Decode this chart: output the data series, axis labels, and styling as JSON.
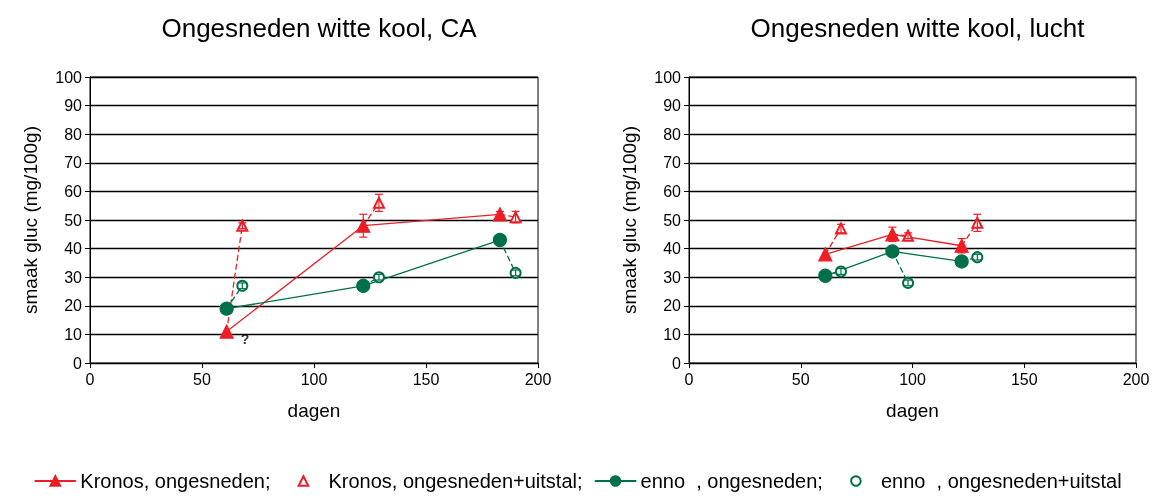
{
  "chart_data": [
    {
      "type": "line",
      "title": "Ongesneden witte kool, CA",
      "xlabel": "dagen",
      "ylabel": "smaak gluc (mg/100g)",
      "xlim": [
        0,
        200
      ],
      "xticks": [
        0,
        50,
        100,
        150,
        200
      ],
      "ylim": [
        0,
        100
      ],
      "yticks": [
        0,
        10,
        20,
        30,
        40,
        50,
        60,
        70,
        80,
        90,
        100
      ],
      "grid": "y",
      "legend": "bottom",
      "annotations": [
        {
          "text": "?",
          "x": 61,
          "y": 11
        }
      ],
      "series": [
        {
          "name": "Kronos, ongesneden;",
          "color": "#ee1c25",
          "marker": "triangle",
          "line_style": "solid",
          "x": [
            61,
            122,
            183
          ],
          "values": [
            11,
            48,
            52
          ],
          "errors": [
            null,
            4,
            1
          ]
        },
        {
          "name": "Kronos, ongesneden+uitstal;",
          "type": "scatter",
          "color": "#ee1c25",
          "marker": "triangle",
          "x": [
            68,
            129,
            190
          ],
          "values": [
            48,
            56,
            51
          ],
          "errors": [
            1,
            3,
            2
          ]
        },
        {
          "name": "enno  , ongesneden;",
          "color": "#00704a",
          "marker": "circle",
          "line_style": "solid",
          "x": [
            61,
            122,
            183
          ],
          "values": [
            19,
            27,
            43
          ]
        },
        {
          "name": "enno  , ongesneden+uitstal",
          "type": "scatter",
          "color": "#00704a",
          "marker": "circle",
          "x": [
            68,
            129,
            190
          ],
          "values": [
            27,
            30,
            31.5
          ],
          "errors": [
            1,
            1,
            1
          ]
        },
        {
          "color": "#ee1c25",
          "marker": "none",
          "line_style": "dashed",
          "x": [
            61,
            68
          ],
          "values": [
            11,
            48
          ]
        },
        {
          "color": "#ee1c25",
          "marker": "none",
          "line_style": "dashed",
          "x": [
            122,
            129
          ],
          "values": [
            48,
            56
          ]
        },
        {
          "color": "#ee1c25",
          "marker": "none",
          "line_style": "dashed",
          "x": [
            183,
            190
          ],
          "values": [
            52,
            51
          ]
        },
        {
          "color": "#00704a",
          "marker": "none",
          "line_style": "dashed",
          "x": [
            61,
            68
          ],
          "values": [
            19,
            27
          ]
        },
        {
          "color": "#00704a",
          "marker": "none",
          "line_style": "dashed",
          "x": [
            122,
            129
          ],
          "values": [
            27,
            30
          ]
        },
        {
          "color": "#00704a",
          "marker": "none",
          "line_style": "dashed",
          "x": [
            183,
            190
          ],
          "values": [
            43,
            31.5
          ]
        }
      ]
    },
    {
      "type": "line",
      "title": "Ongesneden witte kool, lucht",
      "xlabel": "dagen",
      "ylabel": "smaak gluc (mg/100g)",
      "xlim": [
        0,
        200
      ],
      "xticks": [
        0,
        50,
        100,
        150,
        200
      ],
      "ylim": [
        0,
        100
      ],
      "yticks": [
        0,
        10,
        20,
        30,
        40,
        50,
        60,
        70,
        80,
        90,
        100
      ],
      "grid": "y",
      "series": [
        {
          "color": "#ee1c25",
          "marker": "triangle",
          "line_style": "solid",
          "x": [
            61,
            91,
            122
          ],
          "values": [
            38,
            45,
            41
          ],
          "errors": [
            null,
            2.5,
            2.5
          ]
        },
        {
          "type": "scatter",
          "color": "#ee1c25",
          "marker": "triangle",
          "x": [
            68,
            98,
            129
          ],
          "values": [
            47,
            44.5,
            49
          ],
          "errors": [
            1.5,
            1,
            3
          ]
        },
        {
          "color": "#00704a",
          "marker": "circle",
          "line_style": "solid",
          "x": [
            61,
            91,
            122
          ],
          "values": [
            30.5,
            39,
            35.5
          ]
        },
        {
          "type": "scatter",
          "color": "#00704a",
          "marker": "circle",
          "x": [
            68,
            98,
            129
          ],
          "values": [
            32,
            28,
            37
          ],
          "errors": [
            1,
            1,
            1
          ]
        },
        {
          "color": "#ee1c25",
          "marker": "none",
          "line_style": "dashed",
          "x": [
            61,
            68
          ],
          "values": [
            38,
            47
          ]
        },
        {
          "color": "#ee1c25",
          "marker": "none",
          "line_style": "dashed",
          "x": [
            91,
            98
          ],
          "values": [
            45,
            44.5
          ]
        },
        {
          "color": "#ee1c25",
          "marker": "none",
          "line_style": "dashed",
          "x": [
            122,
            129
          ],
          "values": [
            41,
            49
          ]
        },
        {
          "color": "#00704a",
          "marker": "none",
          "line_style": "dashed",
          "x": [
            61,
            68
          ],
          "values": [
            30.5,
            32
          ]
        },
        {
          "color": "#00704a",
          "marker": "none",
          "line_style": "dashed",
          "x": [
            91,
            98
          ],
          "values": [
            39,
            28
          ]
        },
        {
          "color": "#00704a",
          "marker": "none",
          "line_style": "dashed",
          "x": [
            122,
            129
          ],
          "values": [
            35.5,
            37
          ]
        }
      ]
    }
  ]
}
